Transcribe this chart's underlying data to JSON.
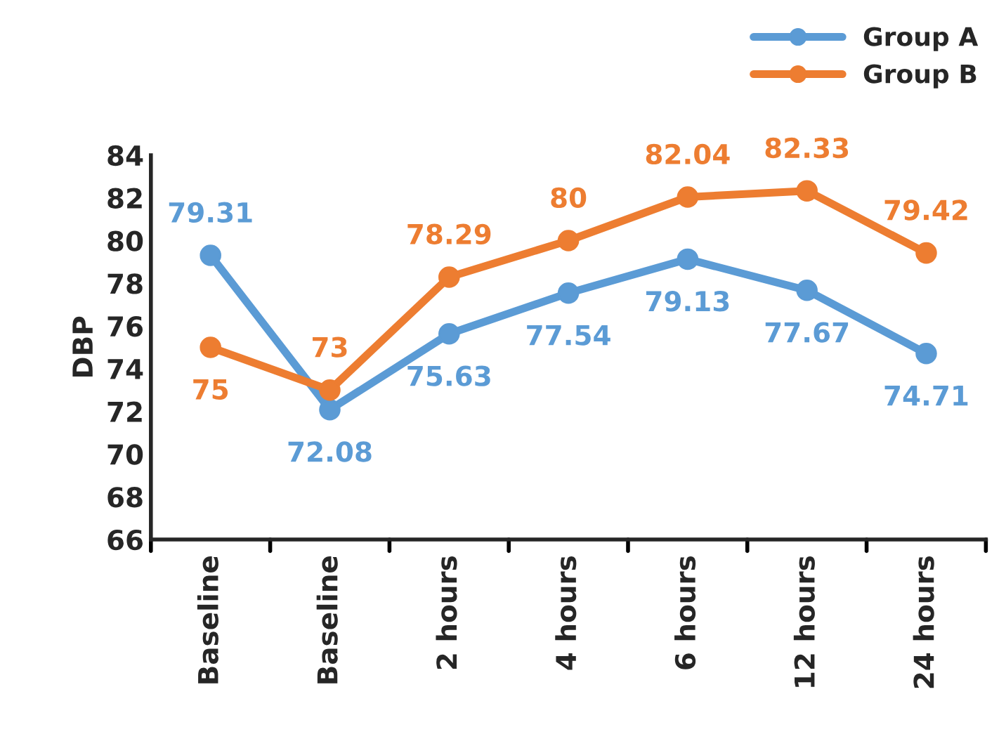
{
  "chart_data": {
    "type": "line",
    "ylabel": "DBP",
    "categories": [
      "Baseline",
      "Baseline",
      "2 hours",
      "4 hours",
      "6 hours",
      "12 hours",
      "24 hours"
    ],
    "series": [
      {
        "name": "Group A",
        "color": "#5b9bd5",
        "values": [
          79.31,
          72.08,
          75.63,
          77.54,
          79.13,
          77.67,
          74.71
        ]
      },
      {
        "name": "Group B",
        "color": "#ed7d31",
        "values": [
          75,
          73,
          78.29,
          80,
          82.04,
          82.33,
          79.42
        ]
      }
    ],
    "ylim": [
      66,
      84
    ],
    "yticks": [
      66,
      68,
      70,
      72,
      74,
      76,
      78,
      80,
      82,
      84
    ],
    "marker": "circle",
    "line_style": "solid",
    "grid": false,
    "legend": "top right",
    "data_labels": true
  }
}
